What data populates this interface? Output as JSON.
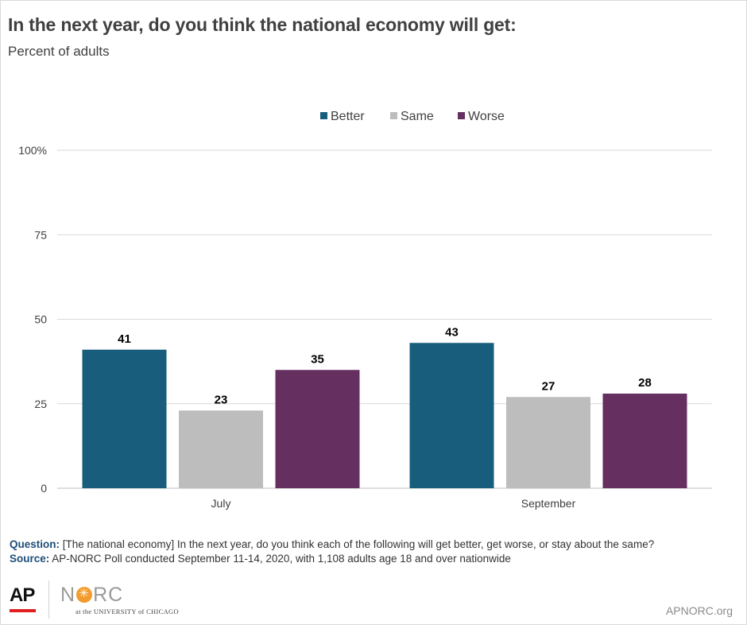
{
  "header": {
    "title": "In the next year, do you think the national economy will get:",
    "subtitle": "Percent of adults"
  },
  "chart_data": {
    "type": "bar",
    "categories": [
      "July",
      "September"
    ],
    "series": [
      {
        "name": "Better",
        "values": [
          41,
          43
        ],
        "color": "#185e7c"
      },
      {
        "name": "Same",
        "values": [
          23,
          27
        ],
        "color": "#bdbdbd"
      },
      {
        "name": "Worse",
        "values": [
          35,
          28
        ],
        "color": "#652f60"
      }
    ],
    "yticks": [
      "0",
      "25",
      "50",
      "75",
      "100%"
    ],
    "ylim": [
      0,
      100
    ],
    "grid": true,
    "legend_position": "top-center"
  },
  "footer": {
    "question_label": "Question:",
    "question_text": "[The national economy] In the next year, do you think each of the following will get better, get worse, or stay about the same?",
    "source_label": "Source:",
    "source_text": "AP-NORC Poll conducted September 11-14, 2020, with 1,108 adults age 18 and over nationwide",
    "ap_logo": "AP",
    "norc_n": "N",
    "norc_rc": "RC",
    "norc_sub": "at the UNIVERSITY of CHICAGO",
    "site": "APNORC.org"
  }
}
